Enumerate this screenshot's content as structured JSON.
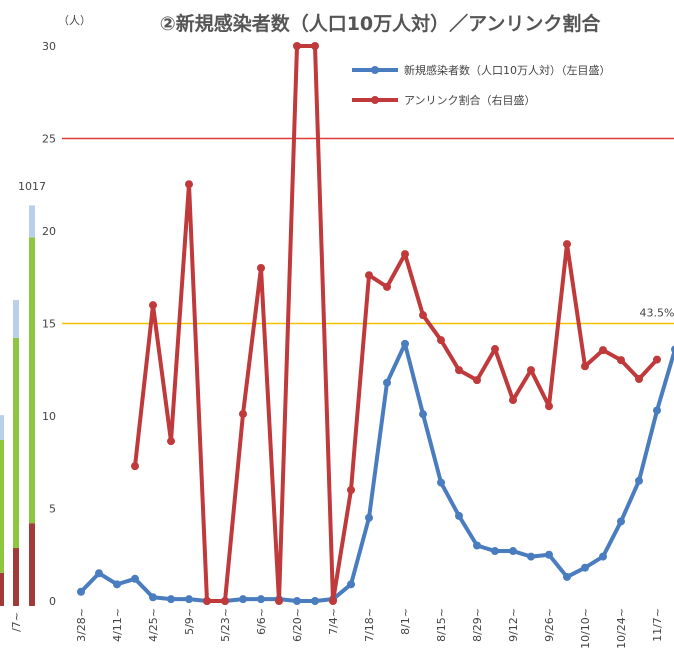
{
  "chart_data": [
    {
      "type": "line",
      "title": "②新規感染者数（人口10万人対）／アンリンク割合",
      "y_unit": "（人）",
      "categories": [
        "3/28~",
        null,
        "4/11~",
        null,
        "4/25~",
        null,
        "5/9~",
        null,
        "5/23~",
        null,
        "6/6~",
        null,
        "6/20~",
        null,
        "7/4~",
        null,
        "7/18~",
        null,
        "8/1~",
        null,
        "8/15~",
        null,
        "8/29~",
        null,
        "9/12~",
        null,
        "9/26~",
        null,
        "10/10~",
        null,
        "10/24~",
        null,
        "11/7~",
        null
      ],
      "series": [
        {
          "name": "新規感染者数（人口10万人対）（左目盛）",
          "color": "#4a7cc0",
          "values": [
            0.5,
            1.5,
            0.9,
            1.2,
            0.2,
            0.1,
            0.1,
            0,
            0,
            0.1,
            0.1,
            0.1,
            0,
            0,
            0.1,
            0.9,
            4.5,
            11.8,
            13.9,
            10.1,
            6.4,
            4.6,
            3.0,
            2.7,
            2.7,
            2.4,
            2.5,
            1.3,
            1.8,
            2.4,
            4.3,
            6.5,
            10.3,
            13.6
          ]
        },
        {
          "name": "アンリンク割合（右目盛）",
          "color": "#c0393b",
          "axis": "y2",
          "values": [
            null,
            null,
            null,
            24.3,
            53.3,
            28.8,
            75.1,
            0,
            0,
            33.7,
            60.0,
            0,
            100,
            100,
            0,
            20.0,
            58.7,
            56.6,
            62.5,
            51.5,
            47.0,
            41.6,
            39.8,
            45.4,
            36.2,
            41.6,
            35.1,
            64.3,
            42.3,
            45.2,
            43.4,
            40.0,
            43.5,
            null
          ],
          "value_labels": [
            null,
            null,
            null,
            null,
            null,
            null,
            null,
            null,
            null,
            null,
            null,
            null,
            null,
            null,
            null,
            null,
            null,
            null,
            null,
            null,
            null,
            null,
            null,
            null,
            null,
            null,
            null,
            null,
            null,
            null,
            null,
            null,
            "43.5%",
            null
          ]
        }
      ],
      "ylim": [
        0,
        30
      ],
      "yticks": [
        0,
        5,
        10,
        15,
        20,
        25,
        30
      ],
      "y2lim": [
        0,
        100
      ],
      "hlines": [
        {
          "value": 25,
          "color": "#e03a3a"
        },
        {
          "value": 15,
          "color": "#f2c200"
        }
      ],
      "legend": "top-right"
    },
    {
      "type": "bar",
      "stacked": true,
      "categories": [
        null,
        "/7~",
        null
      ],
      "series": [
        {
          "color": "#a33a3a",
          "values": [
            84,
            147,
            210
          ]
        },
        {
          "color": "#8dc63f",
          "values": [
            337,
            533,
            725
          ]
        },
        {
          "color": "#b9cfea",
          "values": [
            63,
            96,
            81
          ]
        }
      ],
      "ylim": [
        0,
        1400
      ],
      "annotation": "1017"
    }
  ]
}
